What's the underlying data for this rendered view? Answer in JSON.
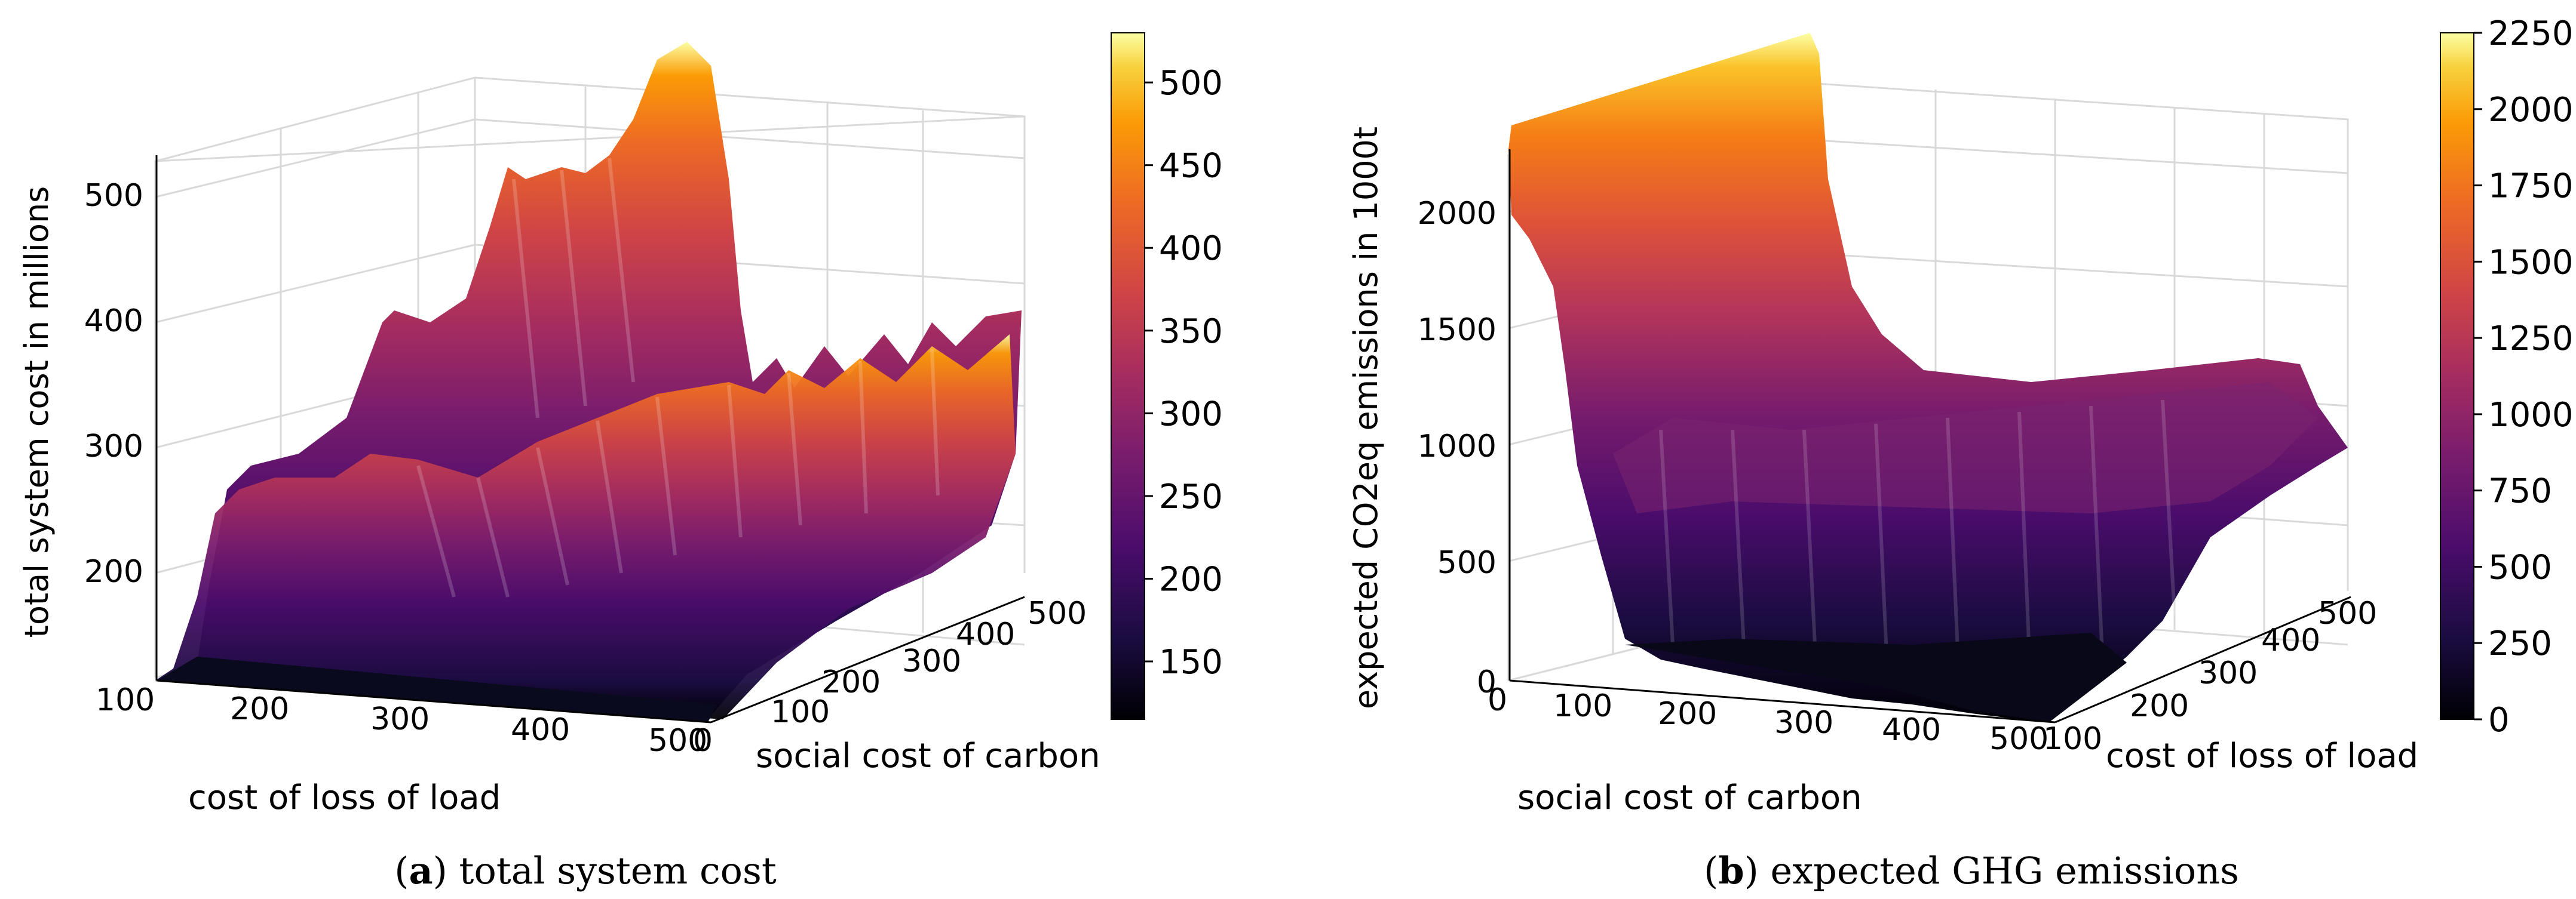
{
  "chart_data": [
    {
      "type": "surface3d",
      "panel": "a",
      "caption_letter": "a",
      "caption_text": ") total system cost",
      "caption_open": "(",
      "xlabel": "cost of loss of load",
      "ylabel": "social cost of carbon",
      "zlabel": "total system cost in millions",
      "x_ticks": [
        "100",
        "200",
        "300",
        "400",
        "500"
      ],
      "y_ticks": [
        "0",
        "100",
        "200",
        "300",
        "400",
        "500"
      ],
      "z_ticks": [
        "200",
        "300",
        "400",
        "500"
      ],
      "xlim": [
        100,
        500
      ],
      "ylim": [
        0,
        500
      ],
      "zlim": [
        100,
        530
      ],
      "colorbar": {
        "ticks": [
          "150",
          "200",
          "250",
          "300",
          "350",
          "400",
          "450",
          "500"
        ],
        "min": 115,
        "max": 530,
        "colormap": "inferno"
      },
      "front_profile_x": [
        100,
        110,
        150,
        200,
        250,
        300,
        350,
        400,
        450,
        500
      ],
      "front_profile_z": [
        110,
        112,
        200,
        240,
        250,
        255,
        250,
        245,
        190,
        110
      ],
      "back_profile_x": [
        100,
        150,
        200,
        250,
        300,
        350,
        400,
        450,
        500
      ],
      "back_profile_z": [
        300,
        330,
        370,
        440,
        510,
        470,
        380,
        360,
        365
      ]
    },
    {
      "type": "surface3d",
      "panel": "b",
      "caption_letter": "b",
      "caption_text": ") expected GHG emissions",
      "caption_open": "(",
      "xlabel": "social cost of carbon",
      "ylabel": "cost of loss of load",
      "zlabel": "expected CO2eq emissions in 1000t",
      "x_ticks": [
        "0",
        "100",
        "200",
        "300",
        "400",
        "500"
      ],
      "y_ticks": [
        "100",
        "200",
        "300",
        "400",
        "500"
      ],
      "z_ticks": [
        "0",
        "500",
        "1000",
        "1500",
        "2000"
      ],
      "xlim": [
        0,
        500
      ],
      "ylim": [
        100,
        500
      ],
      "zlim": [
        0,
        2250
      ],
      "colorbar": {
        "ticks": [
          "0",
          "250",
          "500",
          "750",
          "1000",
          "1250",
          "1500",
          "1750",
          "2000",
          "2250"
        ],
        "min": 0,
        "max": 2250,
        "colormap": "inferno"
      },
      "front_profile_x": [
        0,
        50,
        100,
        200,
        300,
        400,
        500
      ],
      "front_profile_z": [
        2200,
        1300,
        60,
        30,
        20,
        10,
        0
      ],
      "back_profile_x": [
        0,
        50,
        100,
        200,
        300,
        400,
        500
      ],
      "back_profile_z": [
        2250,
        2000,
        1000,
        950,
        900,
        850,
        800
      ]
    }
  ]
}
